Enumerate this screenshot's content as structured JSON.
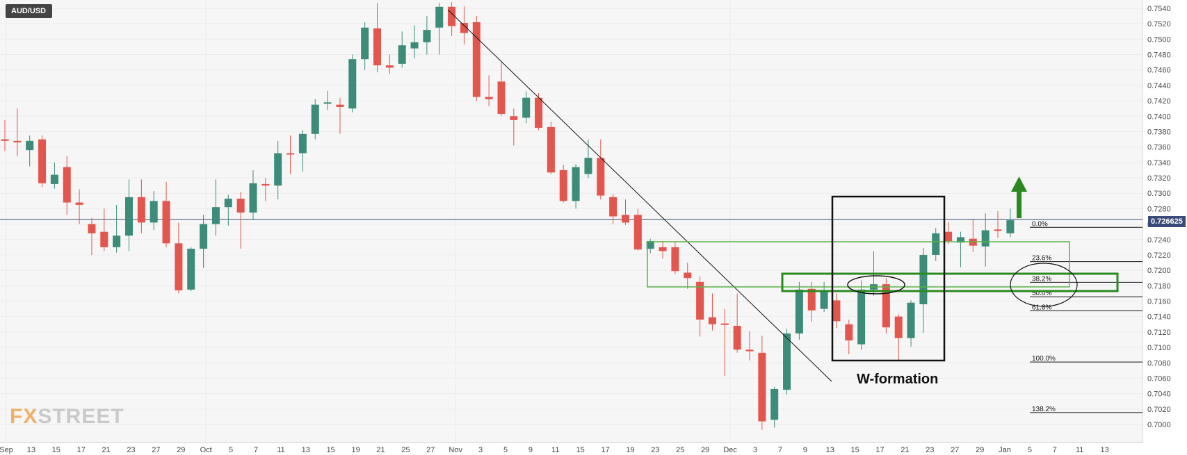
{
  "symbol": "AUD/USD",
  "last_price_label": "0.726625",
  "logo": {
    "x": "FX",
    "rest": "STREET"
  },
  "annotation": "W-formation",
  "colors": {
    "up": "#3c8c79",
    "down": "#e2564d",
    "trendline": "#111111",
    "box": "#111111",
    "green": "#2a8a1f",
    "price_line": "#3b4a78",
    "grid": "#ececec",
    "plot_bg": "#f6f6f6"
  },
  "chart_data": {
    "type": "candlestick",
    "ylim": [
      0.699,
      0.7545
    ],
    "y_ticks": [
      "0.7000",
      "0.7020",
      "0.7040",
      "0.7060",
      "0.7080",
      "0.7100",
      "0.7120",
      "0.7140",
      "0.7160",
      "0.7180",
      "0.7200",
      "0.7220",
      "0.7240",
      "0.7260",
      "0.7280",
      "0.7300",
      "0.7320",
      "0.7340",
      "0.7360",
      "0.7380",
      "0.7400",
      "0.7420",
      "0.7440",
      "0.7460",
      "0.7480",
      "0.7500",
      "0.7520",
      "0.7540"
    ],
    "x_labels": [
      "Sep",
      "13",
      "15",
      "17",
      "21",
      "23",
      "27",
      "29",
      "Oct",
      "5",
      "7",
      "11",
      "13",
      "15",
      "19",
      "21",
      "25",
      "27",
      "Nov",
      "3",
      "5",
      "9",
      "11",
      "15",
      "17",
      "19",
      "23",
      "25",
      "29",
      "Dec",
      "3",
      "7",
      "9",
      "13",
      "15",
      "17",
      "21",
      "23",
      "27",
      "29",
      "Jan",
      "5",
      "7",
      "11",
      "13"
    ],
    "current_price": 0.72663,
    "candles": [
      {
        "o": 0.737,
        "h": 0.7395,
        "l": 0.7355,
        "c": 0.7368
      },
      {
        "o": 0.7368,
        "h": 0.741,
        "l": 0.7348,
        "c": 0.7366
      },
      {
        "o": 0.7356,
        "h": 0.7375,
        "l": 0.7335,
        "c": 0.7368
      },
      {
        "o": 0.737,
        "h": 0.7375,
        "l": 0.7308,
        "c": 0.7313
      },
      {
        "o": 0.7312,
        "h": 0.734,
        "l": 0.7306,
        "c": 0.7324
      },
      {
        "o": 0.7334,
        "h": 0.7348,
        "l": 0.7272,
        "c": 0.7288
      },
      {
        "o": 0.7288,
        "h": 0.7305,
        "l": 0.726,
        "c": 0.7285
      },
      {
        "o": 0.726,
        "h": 0.7268,
        "l": 0.722,
        "c": 0.7248
      },
      {
        "o": 0.725,
        "h": 0.728,
        "l": 0.7225,
        "c": 0.723
      },
      {
        "o": 0.723,
        "h": 0.7285,
        "l": 0.7223,
        "c": 0.7245
      },
      {
        "o": 0.7245,
        "h": 0.7318,
        "l": 0.7225,
        "c": 0.7295
      },
      {
        "o": 0.7295,
        "h": 0.7318,
        "l": 0.7248,
        "c": 0.7262
      },
      {
        "o": 0.7262,
        "h": 0.7303,
        "l": 0.7252,
        "c": 0.729
      },
      {
        "o": 0.729,
        "h": 0.7315,
        "l": 0.723,
        "c": 0.7235
      },
      {
        "o": 0.7235,
        "h": 0.7262,
        "l": 0.717,
        "c": 0.7174
      },
      {
        "o": 0.7175,
        "h": 0.723,
        "l": 0.7173,
        "c": 0.7228
      },
      {
        "o": 0.7228,
        "h": 0.7272,
        "l": 0.7203,
        "c": 0.726
      },
      {
        "o": 0.726,
        "h": 0.7318,
        "l": 0.7245,
        "c": 0.7282
      },
      {
        "o": 0.7282,
        "h": 0.7298,
        "l": 0.7258,
        "c": 0.7293
      },
      {
        "o": 0.7293,
        "h": 0.7302,
        "l": 0.7228,
        "c": 0.7275
      },
      {
        "o": 0.7275,
        "h": 0.733,
        "l": 0.7265,
        "c": 0.7313
      },
      {
        "o": 0.7312,
        "h": 0.732,
        "l": 0.729,
        "c": 0.731
      },
      {
        "o": 0.731,
        "h": 0.7368,
        "l": 0.7292,
        "c": 0.7352
      },
      {
        "o": 0.7352,
        "h": 0.7375,
        "l": 0.7325,
        "c": 0.7351
      },
      {
        "o": 0.7352,
        "h": 0.7382,
        "l": 0.7328,
        "c": 0.7377
      },
      {
        "o": 0.7377,
        "h": 0.7422,
        "l": 0.737,
        "c": 0.7415
      },
      {
        "o": 0.7418,
        "h": 0.7433,
        "l": 0.7408,
        "c": 0.7418
      },
      {
        "o": 0.7415,
        "h": 0.7424,
        "l": 0.7377,
        "c": 0.7412
      },
      {
        "o": 0.741,
        "h": 0.748,
        "l": 0.7405,
        "c": 0.7474
      },
      {
        "o": 0.7474,
        "h": 0.7522,
        "l": 0.746,
        "c": 0.7515
      },
      {
        "o": 0.7514,
        "h": 0.7547,
        "l": 0.7457,
        "c": 0.7466
      },
      {
        "o": 0.7466,
        "h": 0.748,
        "l": 0.7455,
        "c": 0.7463
      },
      {
        "o": 0.7468,
        "h": 0.751,
        "l": 0.7463,
        "c": 0.7492
      },
      {
        "o": 0.7488,
        "h": 0.7518,
        "l": 0.7475,
        "c": 0.7496
      },
      {
        "o": 0.7496,
        "h": 0.753,
        "l": 0.748,
        "c": 0.7512
      },
      {
        "o": 0.7515,
        "h": 0.7547,
        "l": 0.748,
        "c": 0.7542
      },
      {
        "o": 0.7542,
        "h": 0.7548,
        "l": 0.7504,
        "c": 0.7517
      },
      {
        "o": 0.7521,
        "h": 0.7543,
        "l": 0.7493,
        "c": 0.7508
      },
      {
        "o": 0.7522,
        "h": 0.753,
        "l": 0.742,
        "c": 0.7425
      },
      {
        "o": 0.7425,
        "h": 0.7453,
        "l": 0.7413,
        "c": 0.7422
      },
      {
        "o": 0.7445,
        "h": 0.747,
        "l": 0.74,
        "c": 0.7403
      },
      {
        "o": 0.74,
        "h": 0.741,
        "l": 0.7362,
        "c": 0.7395
      },
      {
        "o": 0.7398,
        "h": 0.7432,
        "l": 0.7391,
        "c": 0.7424
      },
      {
        "o": 0.7424,
        "h": 0.743,
        "l": 0.7382,
        "c": 0.7385
      },
      {
        "o": 0.7386,
        "h": 0.7393,
        "l": 0.7325,
        "c": 0.7327
      },
      {
        "o": 0.733,
        "h": 0.7337,
        "l": 0.7288,
        "c": 0.729
      },
      {
        "o": 0.729,
        "h": 0.7338,
        "l": 0.728,
        "c": 0.7334
      },
      {
        "o": 0.7325,
        "h": 0.737,
        "l": 0.732,
        "c": 0.7346
      },
      {
        "o": 0.7346,
        "h": 0.737,
        "l": 0.7292,
        "c": 0.7297
      },
      {
        "o": 0.7295,
        "h": 0.7299,
        "l": 0.726,
        "c": 0.727
      },
      {
        "o": 0.7272,
        "h": 0.7292,
        "l": 0.7259,
        "c": 0.7262
      },
      {
        "o": 0.7272,
        "h": 0.728,
        "l": 0.7226,
        "c": 0.7227
      },
      {
        "o": 0.7228,
        "h": 0.7241,
        "l": 0.7222,
        "c": 0.7238
      },
      {
        "o": 0.723,
        "h": 0.7238,
        "l": 0.7215,
        "c": 0.7225
      },
      {
        "o": 0.723,
        "h": 0.7238,
        "l": 0.7195,
        "c": 0.7199
      },
      {
        "o": 0.7197,
        "h": 0.721,
        "l": 0.7176,
        "c": 0.719
      },
      {
        "o": 0.7185,
        "h": 0.7192,
        "l": 0.7114,
        "c": 0.7136
      },
      {
        "o": 0.7139,
        "h": 0.717,
        "l": 0.7122,
        "c": 0.713
      },
      {
        "o": 0.7131,
        "h": 0.715,
        "l": 0.7063,
        "c": 0.713
      },
      {
        "o": 0.7128,
        "h": 0.717,
        "l": 0.7093,
        "c": 0.7097
      },
      {
        "o": 0.7097,
        "h": 0.7121,
        "l": 0.7083,
        "c": 0.7095
      },
      {
        "o": 0.7093,
        "h": 0.7115,
        "l": 0.6993,
        "c": 0.7004
      },
      {
        "o": 0.7006,
        "h": 0.7049,
        "l": 0.6996,
        "c": 0.7046
      },
      {
        "o": 0.7045,
        "h": 0.7124,
        "l": 0.7039,
        "c": 0.7118
      },
      {
        "o": 0.7118,
        "h": 0.7185,
        "l": 0.711,
        "c": 0.7175
      },
      {
        "o": 0.7176,
        "h": 0.7185,
        "l": 0.7133,
        "c": 0.7148
      },
      {
        "o": 0.715,
        "h": 0.7185,
        "l": 0.7146,
        "c": 0.7172
      },
      {
        "o": 0.7161,
        "h": 0.717,
        "l": 0.7125,
        "c": 0.7134
      },
      {
        "o": 0.713,
        "h": 0.7136,
        "l": 0.7091,
        "c": 0.7109
      },
      {
        "o": 0.7104,
        "h": 0.7187,
        "l": 0.7097,
        "c": 0.7175
      },
      {
        "o": 0.7175,
        "h": 0.7225,
        "l": 0.7167,
        "c": 0.7182
      },
      {
        "o": 0.7182,
        "h": 0.719,
        "l": 0.7118,
        "c": 0.7126
      },
      {
        "o": 0.714,
        "h": 0.7143,
        "l": 0.7082,
        "c": 0.7112
      },
      {
        "o": 0.7112,
        "h": 0.7161,
        "l": 0.7101,
        "c": 0.7158
      },
      {
        "o": 0.7156,
        "h": 0.7229,
        "l": 0.7119,
        "c": 0.722
      },
      {
        "o": 0.722,
        "h": 0.7255,
        "l": 0.7212,
        "c": 0.7248
      },
      {
        "o": 0.725,
        "h": 0.7263,
        "l": 0.7234,
        "c": 0.7238
      },
      {
        "o": 0.7236,
        "h": 0.725,
        "l": 0.7204,
        "c": 0.7243
      },
      {
        "o": 0.7241,
        "h": 0.7266,
        "l": 0.7224,
        "c": 0.7232
      },
      {
        "o": 0.7231,
        "h": 0.7274,
        "l": 0.7205,
        "c": 0.7252
      },
      {
        "o": 0.7253,
        "h": 0.7277,
        "l": 0.7242,
        "c": 0.7252
      },
      {
        "o": 0.7248,
        "h": 0.728,
        "l": 0.7243,
        "c": 0.7265
      }
    ],
    "fibonacci": [
      {
        "label": "0.0%",
        "value": 0.72558
      },
      {
        "label": "23.6%",
        "value": 0.72113
      },
      {
        "label": "38.2%",
        "value": 0.71845
      },
      {
        "label": "50.0%",
        "value": 0.71657
      },
      {
        "label": "61.8%",
        "value": 0.71474
      },
      {
        "label": "100.0%",
        "value": 0.7081
      },
      {
        "label": "138.2%",
        "value": 0.70154
      }
    ]
  }
}
